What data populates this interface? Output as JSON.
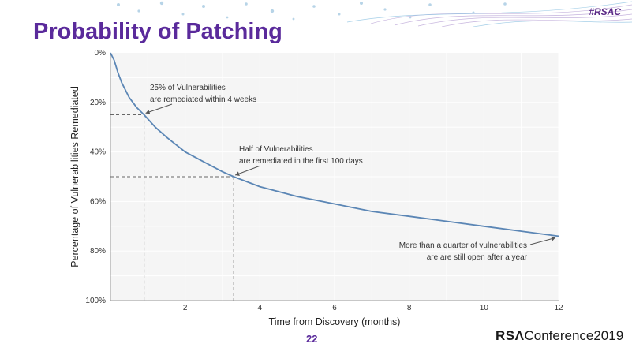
{
  "slide": {
    "title": "Probability of Patching",
    "hashtag": "#RSAC",
    "page_number": "22",
    "brand_rsa": "RSΛ",
    "brand_conference": "Conference2019",
    "accent_color": "#5a2a9b"
  },
  "chart_data": {
    "type": "line",
    "title": "",
    "xlabel": "Time from Discovery (months)",
    "ylabel": "Percentage of Vulnerabilities Remediated",
    "xlim": [
      0,
      12
    ],
    "ylim": [
      0,
      100
    ],
    "y_inverted": true,
    "x_ticks": [
      2,
      4,
      6,
      8,
      10,
      12
    ],
    "y_ticks": [
      0,
      20,
      40,
      60,
      80,
      100
    ],
    "y_tick_labels": [
      "0%",
      "20%",
      "40%",
      "60%",
      "80%",
      "100%"
    ],
    "grid": true,
    "line_color": "#5b86b5",
    "series": [
      {
        "x": [
          0,
          0.1,
          0.2,
          0.3,
          0.5,
          0.7,
          0.9,
          1.2,
          1.5,
          2.0,
          2.5,
          3.0,
          3.3,
          4.0,
          5.0,
          6.0,
          7.0,
          8.0,
          9.0,
          10.0,
          11.0,
          12.0
        ],
        "y": [
          0,
          3,
          8,
          12,
          18,
          22,
          25,
          30,
          34,
          40,
          44,
          48,
          50,
          54,
          58,
          61,
          64,
          66,
          68,
          70,
          72,
          74
        ]
      }
    ],
    "reference_lines": [
      {
        "x": 0.9,
        "y": 25
      },
      {
        "x": 3.3,
        "y": 50
      }
    ],
    "annotations": [
      {
        "lines": [
          "25% of Vulnerabilities",
          "are remediated within 4 weeks"
        ],
        "x": 0.9,
        "y": 25
      },
      {
        "lines": [
          "Half of Vulnerabilities",
          "are remediated in the first 100 days"
        ],
        "x": 3.3,
        "y": 50
      },
      {
        "lines": [
          "More than a quarter of vulnerabilities",
          "are are still open after a year"
        ],
        "x": 12,
        "y": 74
      }
    ]
  }
}
